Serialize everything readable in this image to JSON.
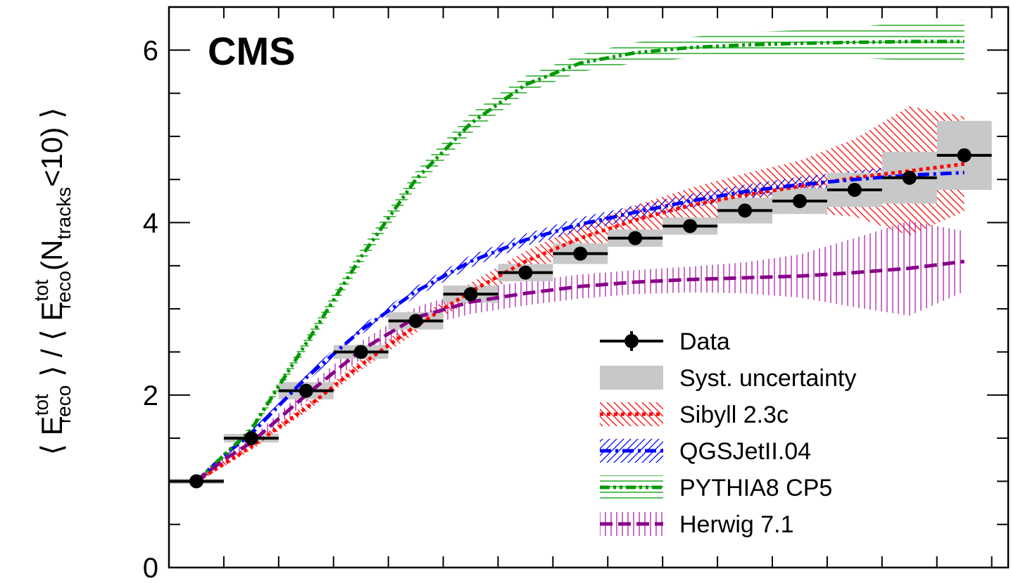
{
  "experiment_label": "CMS",
  "ylabel": "⟨ E_reco^tot ⟩ / ⟨ E_reco^tot(N_tracks<10) ⟩",
  "ylabel_parts": {
    "open": "⟨ E",
    "sup1": "tot",
    "sub1": "reco",
    "mid": " ⟩ / ⟨ E",
    "sup2": "tot",
    "sub2": "reco",
    "paren": "(N",
    "sub3": "tracks",
    "tail": "<10) ⟩"
  },
  "chart_data": {
    "type": "line",
    "xlabel": "",
    "ylabel": "⟨ E_reco^tot ⟩ / ⟨ E_reco^tot(N_tracks<10) ⟩",
    "ylim": [
      0,
      6.5
    ],
    "yticks": [
      0,
      2,
      4,
      6
    ],
    "ytick_labels": [
      "0",
      "2",
      "4",
      "6"
    ],
    "xlim": [
      0.5,
      15.8
    ],
    "legend_position": "bottom-right",
    "grid": false,
    "data": {
      "name": "Data",
      "x": [
        1,
        2,
        3,
        4,
        5,
        6,
        7,
        8,
        9,
        10,
        11,
        12,
        13,
        14,
        15
      ],
      "y": [
        1.0,
        1.5,
        2.05,
        2.5,
        2.86,
        3.17,
        3.42,
        3.64,
        3.82,
        3.96,
        4.14,
        4.25,
        4.38,
        4.52,
        4.78
      ],
      "syst": [
        0.03,
        0.05,
        0.1,
        0.08,
        0.1,
        0.1,
        0.1,
        0.12,
        0.1,
        0.1,
        0.15,
        0.15,
        0.2,
        0.3,
        0.4
      ]
    },
    "syst_label": "Syst. uncertainty",
    "series": [
      {
        "name": "Sibyll 2.3c",
        "color": "#ff0000",
        "style": "dotted",
        "x": [
          1,
          1.5,
          2,
          3,
          4,
          5,
          6,
          7,
          8,
          9,
          10,
          11,
          12,
          13,
          14,
          15
        ],
        "y": [
          1.0,
          1.2,
          1.4,
          1.85,
          2.35,
          2.8,
          3.2,
          3.55,
          3.82,
          4.03,
          4.2,
          4.32,
          4.42,
          4.52,
          4.6,
          4.68
        ],
        "err": [
          0.02,
          0.03,
          0.04,
          0.05,
          0.06,
          0.08,
          0.1,
          0.12,
          0.15,
          0.17,
          0.2,
          0.25,
          0.3,
          0.45,
          0.75,
          0.55
        ]
      },
      {
        "name": "QGSJetII.04",
        "color": "#0000ff",
        "style": "dashdot",
        "x": [
          1,
          1.5,
          2,
          3,
          4,
          5,
          6,
          7,
          8,
          9,
          10,
          11,
          12,
          13,
          14,
          15
        ],
        "y": [
          1.0,
          1.3,
          1.55,
          2.2,
          2.75,
          3.2,
          3.55,
          3.8,
          3.98,
          4.12,
          4.25,
          4.36,
          4.44,
          4.5,
          4.55,
          4.58
        ],
        "err": [
          0.02,
          0.03,
          0.04,
          0.05,
          0.05,
          0.06,
          0.07,
          0.07,
          0.08,
          0.08,
          0.08,
          0.08,
          0.09,
          0.1,
          0.12,
          0.12
        ]
      },
      {
        "name": "PYTHIA8 CP5",
        "color": "#009900",
        "style": "dashdotdot",
        "x": [
          1,
          1.5,
          2,
          3,
          4,
          5,
          6,
          7,
          8,
          9,
          10,
          11,
          12,
          13,
          14,
          15
        ],
        "y": [
          1.0,
          1.3,
          1.6,
          2.6,
          3.6,
          4.5,
          5.15,
          5.6,
          5.85,
          5.97,
          6.03,
          6.06,
          6.08,
          6.09,
          6.1,
          6.1
        ],
        "err": [
          0.02,
          0.03,
          0.05,
          0.08,
          0.1,
          0.1,
          0.12,
          0.1,
          0.1,
          0.12,
          0.12,
          0.15,
          0.15,
          0.18,
          0.22,
          0.25
        ]
      },
      {
        "name": "Herwig 7.1",
        "color": "#880088",
        "style": "dashed",
        "x": [
          1,
          1.5,
          2,
          3,
          4,
          5,
          6,
          7,
          8,
          9,
          10,
          11,
          12,
          13,
          14,
          15
        ],
        "y": [
          1.0,
          1.25,
          1.45,
          2.0,
          2.52,
          2.9,
          3.08,
          3.18,
          3.26,
          3.31,
          3.34,
          3.36,
          3.38,
          3.42,
          3.47,
          3.55
        ],
        "err": [
          0.02,
          0.03,
          0.05,
          0.08,
          0.1,
          0.12,
          0.14,
          0.14,
          0.14,
          0.14,
          0.15,
          0.18,
          0.25,
          0.4,
          0.55,
          0.35
        ]
      }
    ]
  }
}
